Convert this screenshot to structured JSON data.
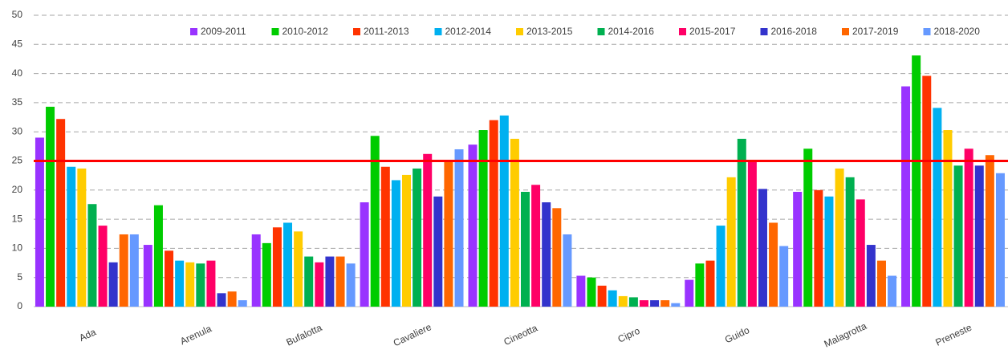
{
  "chart_data": {
    "type": "bar",
    "categories": [
      "Ada",
      "Arenula",
      "Bufalotta",
      "Cavaliere",
      "Cineotta",
      "Cipro",
      "Guido",
      "Malagrotta",
      "Preneste"
    ],
    "series": [
      {
        "name": "2009-2011",
        "color": "#9933ff",
        "values": [
          29,
          10.6,
          12.4,
          17.9,
          27.8,
          5.3,
          4.6,
          19.7,
          37.8
        ]
      },
      {
        "name": "2010-2012",
        "color": "#00cc00",
        "values": [
          34.3,
          17.4,
          10.9,
          29.3,
          30.3,
          5,
          7.4,
          27.1,
          43.1
        ]
      },
      {
        "name": "2011-2013",
        "color": "#ff3300",
        "values": [
          32.2,
          9.6,
          13.6,
          24,
          32,
          3.6,
          7.9,
          20,
          39.6
        ]
      },
      {
        "name": "2012-2014",
        "color": "#00b0f0",
        "values": [
          24,
          7.9,
          14.4,
          21.7,
          32.8,
          2.8,
          13.9,
          18.9,
          34.1
        ]
      },
      {
        "name": "2013-2015",
        "color": "#ffcc00",
        "values": [
          23.7,
          7.6,
          12.9,
          22.6,
          28.8,
          1.8,
          22.2,
          23.7,
          30.3
        ]
      },
      {
        "name": "2014-2016",
        "color": "#00b050",
        "values": [
          17.6,
          7.4,
          8.6,
          23.7,
          19.7,
          1.6,
          28.8,
          22.2,
          24.2
        ]
      },
      {
        "name": "2015-2017",
        "color": "#ff0066",
        "values": [
          13.9,
          7.9,
          7.6,
          26.2,
          20.9,
          1.1,
          25.2,
          18.4,
          27.1
        ]
      },
      {
        "name": "2016-2018",
        "color": "#3333cc",
        "values": [
          7.6,
          2.3,
          8.6,
          18.9,
          17.9,
          1.1,
          20.2,
          10.6,
          24.2
        ]
      },
      {
        "name": "2017-2019",
        "color": "#ff6600",
        "values": [
          12.4,
          2.6,
          8.6,
          25.2,
          16.9,
          1.1,
          14.4,
          7.9,
          26
        ]
      },
      {
        "name": "2018-2020",
        "color": "#6699ff",
        "values": [
          12.4,
          1.1,
          7.4,
          27,
          12.4,
          0.6,
          10.4,
          5.3,
          22.9
        ]
      }
    ],
    "reference_line": 25,
    "reference_color": "#ff0000",
    "ylim": [
      0,
      50
    ],
    "yticks": [
      0,
      5,
      10,
      15,
      20,
      25,
      30,
      35,
      40,
      45,
      50
    ],
    "grid": true,
    "legend": "top"
  }
}
